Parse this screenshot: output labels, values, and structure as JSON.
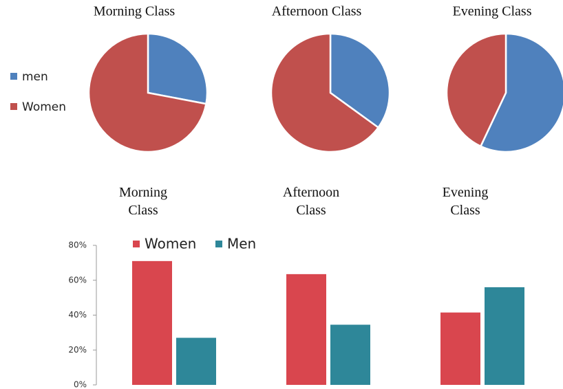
{
  "chart_data": [
    {
      "type": "pie",
      "categories": [
        "men",
        "Women"
      ],
      "colors": [
        "#4f81bd",
        "#c0504d"
      ],
      "series": [
        {
          "name": "Morning Class",
          "values": [
            28,
            72
          ]
        },
        {
          "name": "Afternoon Class",
          "values": [
            35,
            65
          ]
        },
        {
          "name": "Evening Class",
          "values": [
            57,
            43
          ]
        }
      ]
    },
    {
      "type": "bar",
      "categories": [
        "Morning Class",
        "Afternoon Class",
        "Evening Class"
      ],
      "series": [
        {
          "name": "Women",
          "color": "#d9464e",
          "values": [
            71,
            63.5,
            41.5
          ]
        },
        {
          "name": "Men",
          "color": "#2e8799",
          "values": [
            27,
            34.5,
            56
          ]
        }
      ],
      "ylim": [
        0,
        80
      ],
      "yticks": [
        {
          "value": 0,
          "label": "0%"
        },
        {
          "value": 20,
          "label": "20%"
        },
        {
          "value": 40,
          "label": "40%"
        },
        {
          "value": 60,
          "label": "60%"
        },
        {
          "value": 80,
          "label": "80%"
        }
      ],
      "grid": false
    }
  ]
}
